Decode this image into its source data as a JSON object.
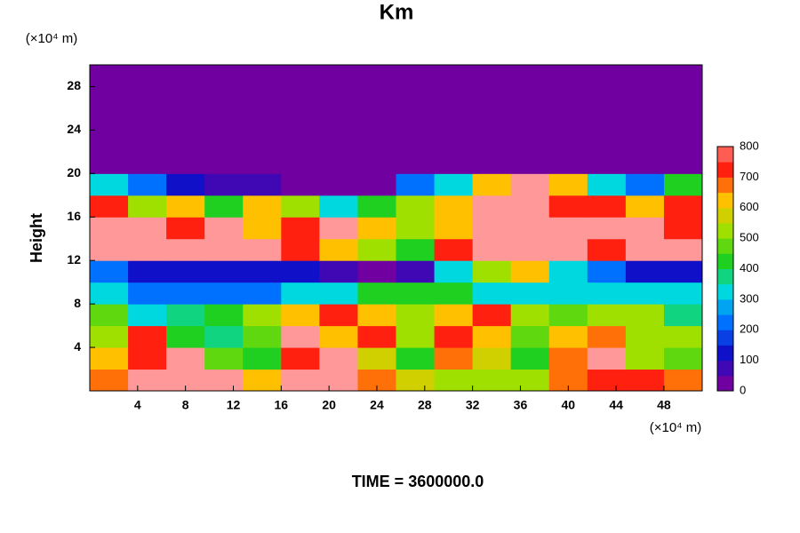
{
  "chart_data": {
    "type": "heatmap",
    "title": "Km",
    "y_unit": "(×10⁴ m)",
    "x_unit": "(×10⁴ m)",
    "ylabel": "Height",
    "footer": "TIME = 3600000.0",
    "x": [
      1.6,
      4.8,
      8.0,
      11.2,
      14.4,
      17.6,
      20.8,
      24.0,
      27.2,
      30.4,
      33.6,
      36.8,
      40.0,
      43.2,
      46.4,
      49.6
    ],
    "y": [
      1,
      3,
      5,
      7,
      9,
      11,
      13,
      15,
      17,
      19,
      21,
      23,
      25,
      27,
      29
    ],
    "z": [
      [
        650,
        800,
        800,
        800,
        600,
        800,
        800,
        650,
        550,
        500,
        500,
        500,
        650,
        700,
        700,
        650
      ],
      [
        600,
        700,
        800,
        450,
        400,
        700,
        800,
        550,
        400,
        650,
        550,
        400,
        650,
        800,
        500,
        450
      ],
      [
        500,
        700,
        400,
        350,
        450,
        800,
        600,
        700,
        500,
        700,
        600,
        450,
        600,
        650,
        500,
        500
      ],
      [
        450,
        300,
        350,
        400,
        500,
        600,
        700,
        600,
        500,
        600,
        700,
        500,
        450,
        500,
        500,
        350
      ],
      [
        300,
        200,
        200,
        200,
        200,
        300,
        300,
        400,
        400,
        400,
        300,
        300,
        300,
        300,
        300,
        300
      ],
      [
        200,
        100,
        100,
        100,
        100,
        100,
        50,
        0,
        50,
        300,
        500,
        600,
        300,
        200,
        100,
        100
      ],
      [
        800,
        800,
        800,
        800,
        800,
        700,
        600,
        500,
        400,
        700,
        800,
        800,
        800,
        700,
        800,
        800
      ],
      [
        800,
        800,
        700,
        800,
        600,
        700,
        800,
        600,
        500,
        600,
        800,
        800,
        800,
        800,
        800,
        700
      ],
      [
        700,
        500,
        600,
        400,
        600,
        500,
        300,
        400,
        500,
        600,
        800,
        800,
        700,
        700,
        600,
        700
      ],
      [
        300,
        200,
        100,
        50,
        50,
        0,
        0,
        0,
        200,
        300,
        600,
        800,
        600,
        300,
        200,
        400
      ],
      [
        0,
        0,
        0,
        0,
        0,
        0,
        0,
        0,
        0,
        0,
        0,
        0,
        0,
        0,
        0,
        0
      ],
      [
        0,
        0,
        0,
        0,
        0,
        0,
        0,
        0,
        0,
        0,
        0,
        0,
        0,
        0,
        0,
        0
      ],
      [
        0,
        0,
        0,
        0,
        0,
        0,
        0,
        0,
        0,
        0,
        0,
        0,
        0,
        0,
        0,
        0
      ],
      [
        0,
        0,
        0,
        0,
        0,
        0,
        0,
        0,
        0,
        0,
        0,
        0,
        0,
        0,
        0,
        0
      ],
      [
        0,
        0,
        0,
        0,
        0,
        0,
        0,
        0,
        0,
        0,
        0,
        0,
        0,
        0,
        0,
        0
      ]
    ],
    "xlim": [
      0,
      51.2
    ],
    "ylim": [
      0,
      30
    ],
    "xticks": [
      4,
      8,
      12,
      16,
      20,
      24,
      28,
      32,
      36,
      40,
      44,
      48
    ],
    "yticks": [
      4,
      8,
      12,
      16,
      20,
      24,
      28
    ],
    "clim": [
      0,
      800
    ],
    "cticks": [
      0,
      100,
      200,
      300,
      400,
      500,
      600,
      700,
      800
    ],
    "colorscale": [
      "#7000a0",
      "#1010c8",
      "#0070ff",
      "#00d8e0",
      "#20d020",
      "#a0e000",
      "#ffc000",
      "#ff2010",
      "#ff9898"
    ]
  }
}
